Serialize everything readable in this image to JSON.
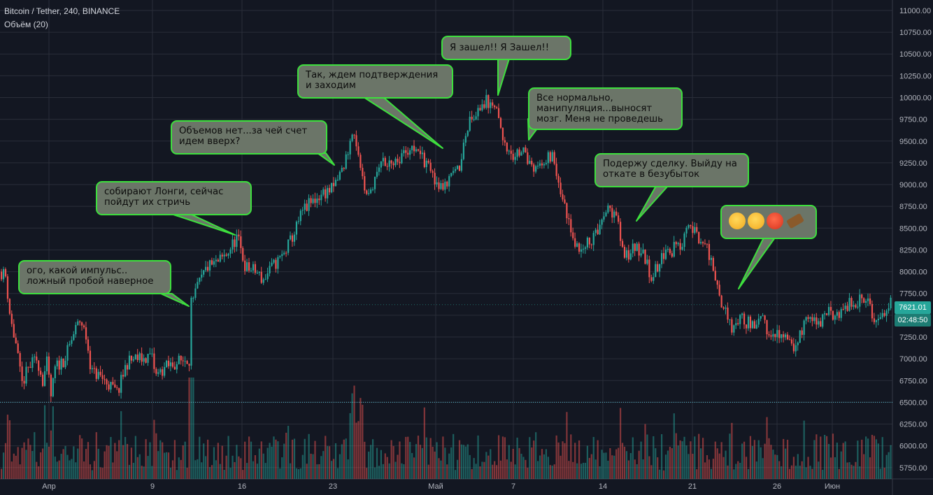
{
  "header": {
    "title": "Bitcoin / Tether, 240, BINANCE",
    "indicator": "Объём (20)"
  },
  "price_tags": {
    "last_price": "7621.01",
    "countdown": "02:48:50"
  },
  "annotations": [
    {
      "id": "a1",
      "lines": [
        "ого, какой импульс..",
        "ложный пробой наверное"
      ]
    },
    {
      "id": "a2",
      "lines": [
        "собирают Лонги, сейчас",
        "пойдут их стричь"
      ]
    },
    {
      "id": "a3",
      "lines": [
        "Объемов нет...за чей счет",
        "идем вверх?"
      ]
    },
    {
      "id": "a4",
      "lines": [
        "Так, ждем подтверждения",
        "и заходим"
      ]
    },
    {
      "id": "a5",
      "lines": [
        "Я зашел!! Я Зашел!!"
      ]
    },
    {
      "id": "a6",
      "lines": [
        "Все нормально,",
        "манипуляция...выносят",
        "мозг. Меня не проведешь"
      ]
    },
    {
      "id": "a7",
      "lines": [
        "Подержу сделку. Выйду на",
        "откате в безубыток"
      ]
    },
    {
      "id": "a8",
      "emojis": [
        "tired-face-emoji",
        "screaming-face-emoji",
        "cursing-face-emoji",
        "coffin-emoji"
      ]
    }
  ],
  "colors": {
    "background": "#131722",
    "grid": "#2a2e39",
    "up": "#26a69a",
    "down": "#ef5350",
    "bubble_fill": "#6b7568",
    "bubble_border": "#3de03d",
    "text": "#d1d4dc",
    "dotted_line": "#4fb7c9"
  },
  "chart_data": {
    "type": "candlestick",
    "title": "Bitcoin / Tether, 240, BINANCE",
    "ylim": [
      5620,
      11120
    ],
    "y_ticks": [
      "11000.00",
      "10750.00",
      "10500.00",
      "10250.00",
      "10000.00",
      "9750.00",
      "9500.00",
      "9250.00",
      "9000.00",
      "8750.00",
      "8500.00",
      "8250.00",
      "8000.00",
      "7750.00",
      "7500.00",
      "7250.00",
      "7000.00",
      "6750.00",
      "6500.00",
      "6250.00",
      "6000.00",
      "5750.00"
    ],
    "x_ticks": [
      "Апр",
      "9",
      "16",
      "23",
      "Май",
      "7",
      "14",
      "21",
      "26",
      "Июн"
    ],
    "horizontal_line": 6500,
    "last_price": 7621.01,
    "price_path": [
      {
        "x": 0,
        "p": 8000
      },
      {
        "x": 7,
        "p": 7950
      },
      {
        "x": 14,
        "p": 7450
      },
      {
        "x": 22,
        "p": 7150
      },
      {
        "x": 30,
        "p": 6700
      },
      {
        "x": 40,
        "p": 6900
      },
      {
        "x": 52,
        "p": 7000
      },
      {
        "x": 60,
        "p": 6750
      },
      {
        "x": 66,
        "p": 6950
      },
      {
        "x": 72,
        "p": 6550
      },
      {
        "x": 78,
        "p": 6900
      },
      {
        "x": 92,
        "p": 7000
      },
      {
        "x": 105,
        "p": 7300
      },
      {
        "x": 114,
        "p": 7450
      },
      {
        "x": 122,
        "p": 7250
      },
      {
        "x": 130,
        "p": 6850
      },
      {
        "x": 142,
        "p": 6800
      },
      {
        "x": 155,
        "p": 6700
      },
      {
        "x": 167,
        "p": 6600
      },
      {
        "x": 180,
        "p": 6950
      },
      {
        "x": 192,
        "p": 7000
      },
      {
        "x": 205,
        "p": 7000
      },
      {
        "x": 215,
        "p": 7050
      },
      {
        "x": 222,
        "p": 6800
      },
      {
        "x": 235,
        "p": 6900
      },
      {
        "x": 250,
        "p": 6950
      },
      {
        "x": 265,
        "p": 7000
      },
      {
        "x": 272,
        "p": 7000
      },
      {
        "x": 275,
        "p": 7700
      },
      {
        "x": 283,
        "p": 7850
      },
      {
        "x": 295,
        "p": 8050
      },
      {
        "x": 310,
        "p": 8100
      },
      {
        "x": 323,
        "p": 8200
      },
      {
        "x": 338,
        "p": 8400
      },
      {
        "x": 350,
        "p": 8050
      },
      {
        "x": 365,
        "p": 8000
      },
      {
        "x": 375,
        "p": 7900
      },
      {
        "x": 388,
        "p": 8050
      },
      {
        "x": 405,
        "p": 8200
      },
      {
        "x": 420,
        "p": 8450
      },
      {
        "x": 432,
        "p": 8700
      },
      {
        "x": 445,
        "p": 8800
      },
      {
        "x": 460,
        "p": 8900
      },
      {
        "x": 475,
        "p": 8950
      },
      {
        "x": 490,
        "p": 9200
      },
      {
        "x": 505,
        "p": 9650
      },
      {
        "x": 512,
        "p": 9250
      },
      {
        "x": 522,
        "p": 8850
      },
      {
        "x": 532,
        "p": 8950
      },
      {
        "x": 545,
        "p": 9300
      },
      {
        "x": 560,
        "p": 9250
      },
      {
        "x": 575,
        "p": 9350
      },
      {
        "x": 588,
        "p": 9450
      },
      {
        "x": 602,
        "p": 9300
      },
      {
        "x": 615,
        "p": 9200
      },
      {
        "x": 625,
        "p": 8900
      },
      {
        "x": 640,
        "p": 9050
      },
      {
        "x": 655,
        "p": 9200
      },
      {
        "x": 668,
        "p": 9700
      },
      {
        "x": 680,
        "p": 9850
      },
      {
        "x": 693,
        "p": 9950
      },
      {
        "x": 705,
        "p": 9950
      },
      {
        "x": 715,
        "p": 9650
      },
      {
        "x": 730,
        "p": 9300
      },
      {
        "x": 745,
        "p": 9400
      },
      {
        "x": 760,
        "p": 9150
      },
      {
        "x": 775,
        "p": 9300
      },
      {
        "x": 790,
        "p": 9350
      },
      {
        "x": 800,
        "p": 8950
      },
      {
        "x": 812,
        "p": 8550
      },
      {
        "x": 825,
        "p": 8250
      },
      {
        "x": 840,
        "p": 8350
      },
      {
        "x": 855,
        "p": 8450
      },
      {
        "x": 868,
        "p": 8700
      },
      {
        "x": 880,
        "p": 8650
      },
      {
        "x": 892,
        "p": 8150
      },
      {
        "x": 905,
        "p": 8300
      },
      {
        "x": 918,
        "p": 8200
      },
      {
        "x": 930,
        "p": 7950
      },
      {
        "x": 945,
        "p": 8150
      },
      {
        "x": 960,
        "p": 8250
      },
      {
        "x": 972,
        "p": 8300
      },
      {
        "x": 985,
        "p": 8550
      },
      {
        "x": 997,
        "p": 8400
      },
      {
        "x": 1010,
        "p": 8250
      },
      {
        "x": 1020,
        "p": 8000
      },
      {
        "x": 1032,
        "p": 7600
      },
      {
        "x": 1045,
        "p": 7350
      },
      {
        "x": 1058,
        "p": 7450
      },
      {
        "x": 1072,
        "p": 7400
      },
      {
        "x": 1088,
        "p": 7450
      },
      {
        "x": 1100,
        "p": 7300
      },
      {
        "x": 1112,
        "p": 7300
      },
      {
        "x": 1125,
        "p": 7200
      },
      {
        "x": 1135,
        "p": 7100
      },
      {
        "x": 1145,
        "p": 7350
      },
      {
        "x": 1158,
        "p": 7450
      },
      {
        "x": 1170,
        "p": 7350
      },
      {
        "x": 1182,
        "p": 7550
      },
      {
        "x": 1195,
        "p": 7450
      },
      {
        "x": 1208,
        "p": 7600
      },
      {
        "x": 1222,
        "p": 7650
      },
      {
        "x": 1235,
        "p": 7700
      },
      {
        "x": 1248,
        "p": 7500
      },
      {
        "x": 1260,
        "p": 7450
      },
      {
        "x": 1272,
        "p": 7621
      }
    ]
  }
}
